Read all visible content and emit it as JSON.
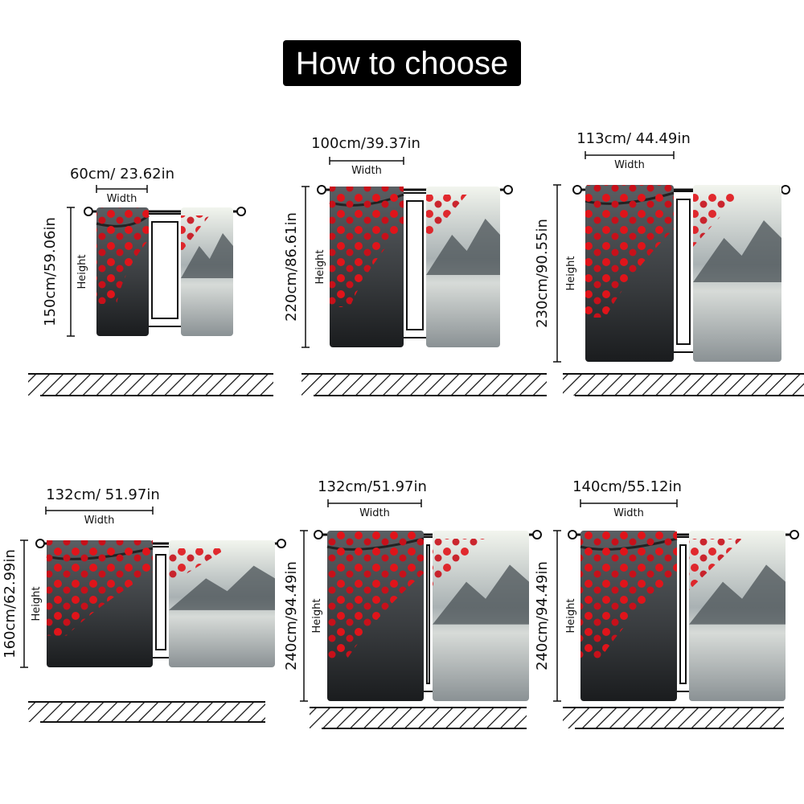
{
  "title": "How to choose",
  "panels": [
    {
      "width": "60cm/ 23.62in",
      "width_caption": "Width",
      "height": "150cm/59.06in",
      "height_caption": "Height"
    },
    {
      "width": "100cm/39.37in",
      "width_caption": "Width",
      "height": "220cm/86.61in",
      "height_caption": "Height"
    },
    {
      "width": "113cm/ 44.49in",
      "width_caption": "Width",
      "height": "230cm/90.55in",
      "height_caption": "Height"
    },
    {
      "width": "132cm/ 51.97in",
      "width_caption": "Width",
      "height": "160cm/62.99in",
      "height_caption": "Height"
    },
    {
      "width": "132cm/51.97in",
      "width_caption": "Width",
      "height": "240cm/94.49in",
      "height_caption": "Height"
    },
    {
      "width": "140cm/55.12in",
      "width_caption": "Width",
      "height": "240cm/94.49in",
      "height_caption": "Height"
    }
  ]
}
